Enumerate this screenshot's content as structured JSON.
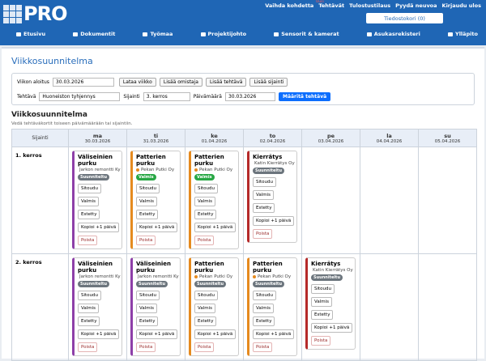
{
  "header": {
    "logo": "PRO",
    "links": [
      "Vaihda kohdetta",
      "Tehtävät",
      "Tulostustilaus",
      "Pyydä neuvoa",
      "Kirjaudu ulos"
    ],
    "badge": "Uusi",
    "cart_button": "Tiedostokori (0)"
  },
  "nav": [
    "Etusivu",
    "Dokumentit",
    "Työmaa",
    "Projektijohto",
    "Sensorit & kamerat",
    "Asukasrekisteri",
    "Ylläpito"
  ],
  "page_title": "Viikkosuunnitelma",
  "form": {
    "week_start_label": "Viikon aloitus",
    "week_start_value": "30.03.2026",
    "buttons": [
      "Lataa viikko",
      "Lisää omistaja",
      "Lisää tehtävä",
      "Lisää sijainti"
    ],
    "task_label": "Tehtävä",
    "task_value": "Huoneiston tyhjennys",
    "location_label": "Sijainti",
    "location_value": "3. kerros",
    "date_label": "Päivämäärä",
    "date_value": "30.03.2026",
    "assign_button": "Määritä tehtävä"
  },
  "plan": {
    "title": "Viikkosuunnitelma",
    "subtitle": "Vedä tehtäväkortit toiseen päivämäärään tai sijaintiin.",
    "location_header": "Sijainti",
    "days": [
      {
        "day": "ma",
        "date": "30.03.2026"
      },
      {
        "day": "ti",
        "date": "31.03.2026"
      },
      {
        "day": "ke",
        "date": "01.04.2026"
      },
      {
        "day": "to",
        "date": "02.04.2026"
      },
      {
        "day": "pe",
        "date": "03.04.2026"
      },
      {
        "day": "la",
        "date": "04.04.2026"
      },
      {
        "day": "su",
        "date": "05.04.2026"
      }
    ],
    "card_actions": [
      "Sitoudu",
      "Valmis",
      "Estetty",
      "Kopioi +1 päivä",
      "Poista"
    ],
    "rows": [
      {
        "location": "1. kerros",
        "cells": [
          {
            "title": "Väliseinien purku",
            "company": "Jarkon remontti Ky",
            "status": "Suunniteltu",
            "color": "#8e3fa8",
            "status_color": "#6c757d"
          },
          {
            "title": "Patterien purku",
            "company": "Pekan Putki Oy",
            "status": "Valmis",
            "color": "#e58a1f",
            "status_color": "#28a745"
          },
          {
            "title": "Patterien purku",
            "company": "Pekan Putki Oy",
            "status": "Valmis",
            "color": "#e58a1f",
            "status_color": "#28a745"
          },
          {
            "title": "Kierrätys",
            "company": "Katin Kierrätys Oy",
            "status": "Suunniteltu",
            "color": "#b52a2a",
            "status_color": "#6c757d"
          },
          null,
          null,
          null
        ]
      },
      {
        "location": "2. kerros",
        "cells": [
          {
            "title": "Väliseinien purku",
            "company": "Jarkon remontti Ky",
            "status": "Suunniteltu",
            "color": "#8e3fa8",
            "status_color": "#6c757d"
          },
          {
            "title": "Väliseinien purku",
            "company": "Jarkon remontti Ky",
            "status": "Suunniteltu",
            "color": "#8e3fa8",
            "status_color": "#6c757d"
          },
          {
            "title": "Patterien purku",
            "company": "Pekan Putki Oy",
            "status": "Suunniteltu",
            "color": "#e58a1f",
            "status_color": "#6c757d"
          },
          {
            "title": "Patterien purku",
            "company": "Pekan Putki Oy",
            "status": "Suunniteltu",
            "color": "#e58a1f",
            "status_color": "#6c757d"
          },
          {
            "title": "Kierrätys",
            "company": "Katin Kierrätys Oy",
            "status": "Suunniteltu",
            "color": "#b52a2a",
            "status_color": "#6c757d"
          },
          null,
          null
        ]
      }
    ]
  }
}
